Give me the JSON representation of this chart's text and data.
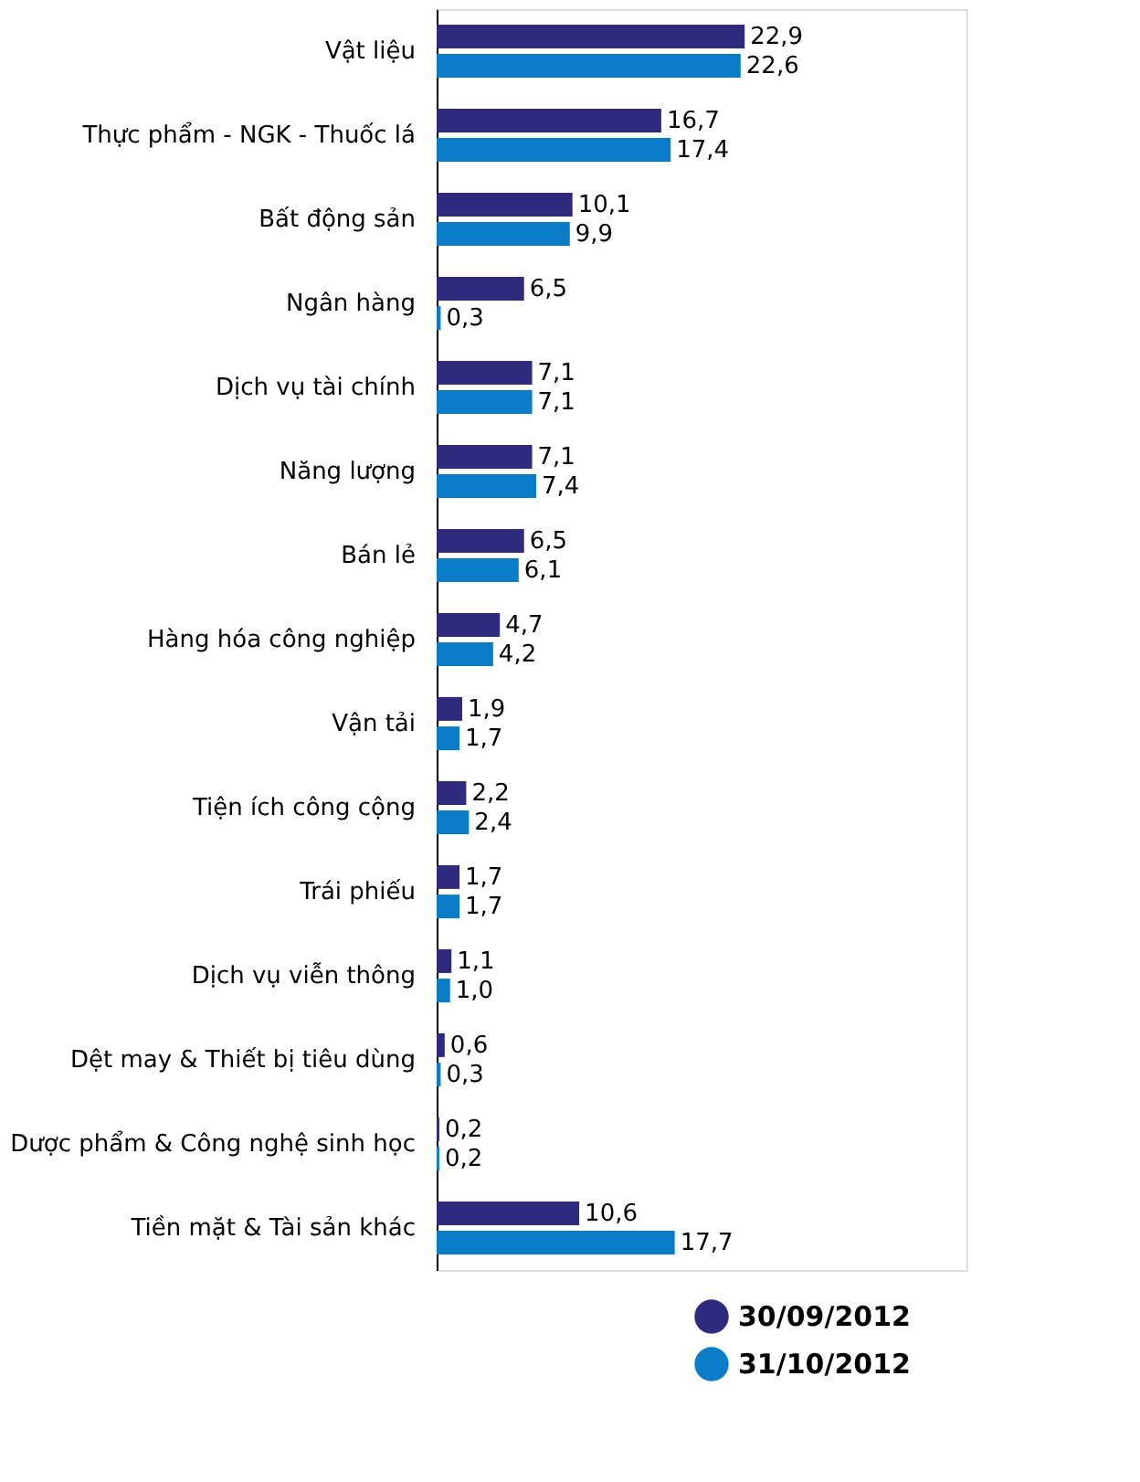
{
  "chart_data": {
    "type": "bar",
    "orientation": "horizontal",
    "legend": "bottom right",
    "categories": [
      "Vật liệu",
      "Thực phẩm - NGK - Thuốc lá",
      "Bất động sản",
      "Ngân hàng",
      "Dịch vụ tài chính",
      "Năng lượng",
      "Bán lẻ",
      "Hàng hóa công nghiệp",
      "Vận tải",
      "Tiện ích công cộng",
      "Trái phiếu",
      "Dịch vụ viễn thông",
      "Dệt may & Thiết bị tiêu dùng",
      "Dược phẩm & Công nghệ sinh học",
      "Tiền mặt & Tài sản khác"
    ],
    "series": [
      {
        "name": "30/09/2012",
        "color": "#2e2a7e",
        "values": [
          22.9,
          16.7,
          10.1,
          6.5,
          7.1,
          7.1,
          6.5,
          4.7,
          1.9,
          2.2,
          1.7,
          1.1,
          0.6,
          0.2,
          10.6
        ],
        "value_labels": [
          "22,9",
          "16,7",
          "10,1",
          "6,5",
          "7,1",
          "7,1",
          "6,5",
          "4,7",
          "1,9",
          "2,2",
          "1,7",
          "1,1",
          "0,6",
          "0,2",
          "10,6"
        ]
      },
      {
        "name": "31/10/2012",
        "color": "#0a7cc8",
        "values": [
          22.6,
          17.4,
          9.9,
          0.3,
          7.1,
          7.4,
          6.1,
          4.2,
          1.7,
          2.4,
          1.7,
          1.0,
          0.3,
          0.2,
          17.7
        ],
        "value_labels": [
          "22,6",
          "17,4",
          "9,9",
          "0,3",
          "7,1",
          "7,4",
          "6,1",
          "4,2",
          "1,7",
          "2,4",
          "1,7",
          "1,0",
          "0,3",
          "0,2",
          "17,7"
        ]
      }
    ]
  }
}
